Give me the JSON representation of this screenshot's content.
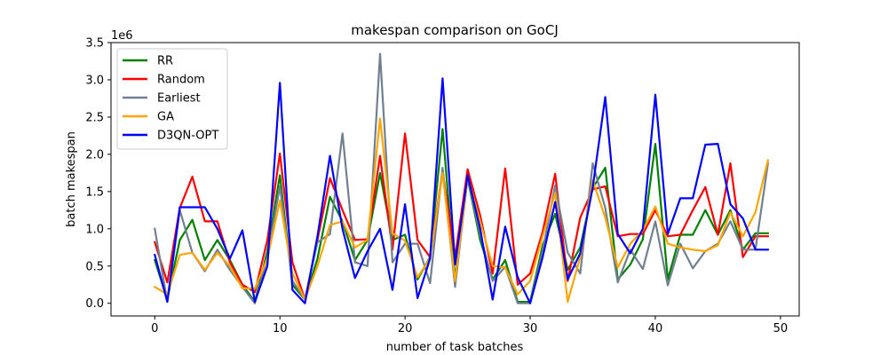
{
  "chart_data": {
    "type": "line",
    "title": "makespan comparison on GoCJ",
    "xlabel": "number of task batches",
    "ylabel": "batch makespan",
    "y_offset_label": "1e6",
    "xlim": [
      -3.5,
      51.5
    ],
    "ylim": [
      -0.17,
      3.5
    ],
    "xticks": [
      0,
      10,
      20,
      30,
      40,
      50
    ],
    "yticks": [
      0.0,
      0.5,
      1.0,
      1.5,
      2.0,
      2.5,
      3.0,
      3.5
    ],
    "grid": false,
    "legend_position": "top-left",
    "x": [
      0,
      1,
      2,
      3,
      4,
      5,
      6,
      7,
      8,
      9,
      10,
      11,
      12,
      13,
      14,
      15,
      16,
      17,
      18,
      19,
      20,
      21,
      22,
      23,
      24,
      25,
      26,
      27,
      28,
      29,
      30,
      31,
      32,
      33,
      34,
      35,
      36,
      37,
      38,
      39,
      40,
      41,
      42,
      43,
      44,
      45,
      46,
      47,
      48,
      49
    ],
    "series": [
      {
        "name": "RR",
        "color": "#008000",
        "values": [
          0.58,
          0.05,
          0.85,
          1.12,
          0.58,
          0.85,
          0.58,
          0.25,
          0.02,
          0.7,
          1.72,
          0.25,
          0.05,
          0.6,
          1.43,
          1.1,
          0.58,
          0.85,
          1.75,
          0.85,
          0.92,
          0.32,
          0.62,
          2.34,
          0.32,
          1.68,
          0.85,
          0.32,
          0.58,
          0.02,
          0.02,
          0.78,
          1.2,
          0.45,
          0.75,
          1.55,
          1.82,
          0.32,
          0.52,
          0.86,
          2.14,
          0.32,
          0.92,
          0.92,
          1.25,
          0.92,
          1.25,
          0.72,
          0.94,
          0.94
        ]
      },
      {
        "name": "Random",
        "color": "#ff0000",
        "values": [
          0.82,
          0.28,
          1.28,
          1.7,
          1.1,
          1.1,
          0.55,
          0.25,
          0.15,
          0.85,
          2.01,
          0.55,
          0.05,
          0.85,
          1.68,
          1.25,
          0.85,
          0.86,
          1.98,
          0.72,
          2.28,
          0.85,
          0.62,
          1.78,
          0.62,
          1.8,
          1.18,
          0.4,
          1.81,
          0.25,
          0.4,
          0.96,
          1.74,
          0.3,
          1.15,
          1.53,
          1.57,
          0.9,
          0.93,
          0.93,
          1.25,
          0.9,
          0.92,
          1.25,
          1.56,
          0.92,
          1.88,
          0.62,
          0.9,
          0.9
        ]
      },
      {
        "name": "Earliest",
        "color": "#708090",
        "values": [
          1.0,
          0.02,
          1.25,
          0.68,
          0.43,
          0.72,
          0.45,
          0.22,
          0.0,
          0.62,
          1.57,
          0.3,
          0.05,
          0.82,
          0.93,
          2.28,
          0.55,
          0.5,
          3.35,
          0.55,
          0.8,
          0.8,
          0.27,
          1.82,
          0.22,
          1.7,
          0.92,
          0.3,
          0.49,
          0.0,
          0.0,
          0.7,
          1.58,
          0.68,
          0.4,
          1.88,
          1.28,
          0.28,
          0.72,
          0.46,
          1.1,
          0.24,
          0.8,
          0.47,
          0.7,
          0.8,
          1.1,
          0.72,
          0.72,
          1.88
        ]
      },
      {
        "name": "GA",
        "color": "#ffa500",
        "values": [
          0.22,
          0.12,
          0.65,
          0.68,
          0.45,
          0.68,
          0.5,
          0.2,
          0.2,
          0.6,
          1.38,
          0.4,
          0.05,
          0.5,
          1.05,
          1.1,
          0.75,
          0.85,
          2.48,
          0.94,
          0.84,
          0.35,
          0.6,
          1.75,
          0.3,
          1.7,
          1.1,
          0.5,
          0.48,
          0.12,
          0.3,
          0.9,
          1.48,
          0.02,
          0.62,
          1.65,
          1.15,
          0.48,
          0.8,
          0.98,
          1.3,
          0.8,
          0.75,
          0.72,
          0.7,
          0.78,
          1.22,
          0.9,
          1.22,
          1.92
        ]
      },
      {
        "name": "D3QN-OPT",
        "color": "#0000ff",
        "values": [
          0.65,
          0.02,
          1.29,
          1.29,
          1.29,
          1.0,
          0.6,
          0.98,
          0.02,
          0.5,
          2.96,
          0.18,
          0.0,
          0.9,
          1.98,
          1.0,
          0.34,
          0.7,
          1.0,
          0.18,
          1.33,
          0.07,
          0.6,
          3.02,
          0.52,
          1.72,
          1.0,
          0.05,
          1.03,
          0.35,
          0.0,
          0.62,
          1.36,
          0.32,
          0.67,
          1.56,
          2.77,
          0.93,
          0.67,
          1.0,
          2.8,
          0.93,
          1.41,
          1.41,
          2.13,
          2.14,
          1.33,
          1.14,
          0.72,
          0.72
        ]
      }
    ]
  }
}
